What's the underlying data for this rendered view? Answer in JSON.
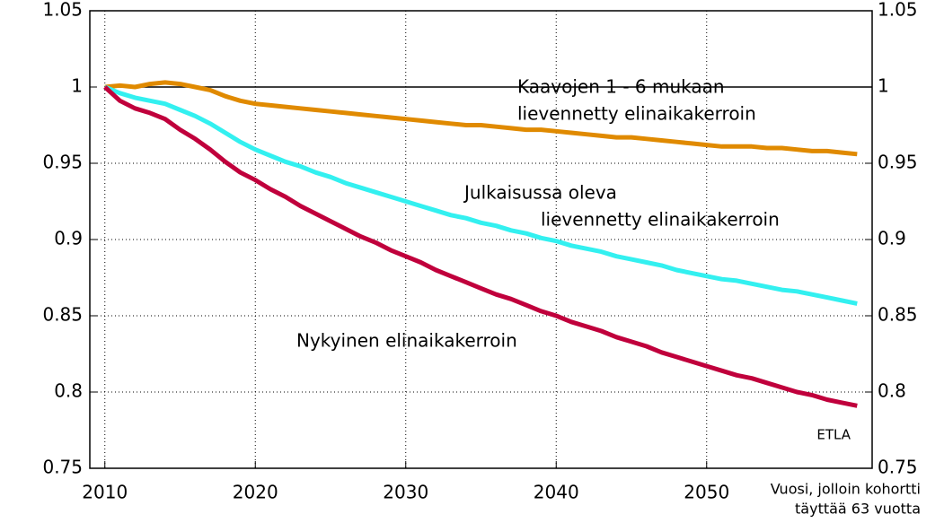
{
  "chart_data": {
    "type": "line",
    "x": [
      2010,
      2011,
      2012,
      2013,
      2014,
      2015,
      2016,
      2017,
      2018,
      2019,
      2020,
      2021,
      2022,
      2023,
      2024,
      2025,
      2026,
      2027,
      2028,
      2029,
      2030,
      2031,
      2032,
      2033,
      2034,
      2035,
      2036,
      2037,
      2038,
      2039,
      2040,
      2041,
      2042,
      2043,
      2044,
      2045,
      2046,
      2047,
      2048,
      2049,
      2050,
      2051,
      2052,
      2053,
      2054,
      2055,
      2056,
      2057,
      2058,
      2059,
      2060
    ],
    "series": [
      {
        "color": "#e08a00",
        "values": [
          1.0,
          1.001,
          1.0,
          1.002,
          1.003,
          1.002,
          1.0,
          0.998,
          0.994,
          0.991,
          0.989,
          0.988,
          0.987,
          0.986,
          0.985,
          0.984,
          0.983,
          0.982,
          0.981,
          0.98,
          0.979,
          0.978,
          0.977,
          0.976,
          0.975,
          0.975,
          0.974,
          0.973,
          0.972,
          0.972,
          0.971,
          0.97,
          0.969,
          0.968,
          0.967,
          0.967,
          0.966,
          0.965,
          0.964,
          0.963,
          0.962,
          0.961,
          0.961,
          0.961,
          0.96,
          0.96,
          0.959,
          0.958,
          0.958,
          0.957,
          0.956
        ]
      },
      {
        "color": "#33f0f0",
        "values": [
          1.0,
          0.996,
          0.993,
          0.991,
          0.989,
          0.985,
          0.981,
          0.976,
          0.97,
          0.964,
          0.959,
          0.955,
          0.951,
          0.948,
          0.944,
          0.941,
          0.937,
          0.934,
          0.931,
          0.928,
          0.925,
          0.922,
          0.919,
          0.916,
          0.914,
          0.911,
          0.909,
          0.906,
          0.904,
          0.901,
          0.899,
          0.896,
          0.894,
          0.892,
          0.889,
          0.887,
          0.885,
          0.883,
          0.88,
          0.878,
          0.876,
          0.874,
          0.873,
          0.871,
          0.869,
          0.867,
          0.866,
          0.864,
          0.862,
          0.86,
          0.858
        ]
      },
      {
        "color": "#c0003c",
        "values": [
          1.0,
          0.991,
          0.986,
          0.983,
          0.979,
          0.972,
          0.966,
          0.959,
          0.951,
          0.944,
          0.939,
          0.933,
          0.928,
          0.922,
          0.917,
          0.912,
          0.907,
          0.902,
          0.898,
          0.893,
          0.889,
          0.885,
          0.88,
          0.876,
          0.872,
          0.868,
          0.864,
          0.861,
          0.857,
          0.853,
          0.85,
          0.846,
          0.843,
          0.84,
          0.836,
          0.833,
          0.83,
          0.826,
          0.823,
          0.82,
          0.817,
          0.814,
          0.811,
          0.809,
          0.806,
          0.803,
          0.8,
          0.798,
          0.795,
          0.793,
          0.791
        ]
      }
    ],
    "xlim": [
      2009,
      2061
    ],
    "xticks": [
      2010,
      2020,
      2030,
      2040,
      2050
    ],
    "ylim": [
      0.75,
      1.05
    ],
    "yticks": [
      0.75,
      0.8,
      0.85,
      0.9,
      0.95,
      1,
      1.05
    ],
    "grid": true,
    "xlabel": [
      "Vuosi, jolloin kohortti",
      "täyttää 63 vuotta"
    ],
    "annotations": [
      "Kaavojen 1 - 6 mukaan",
      "lievennetty elinaikakerroin",
      "Julkaisussa oleva",
      "lievennetty elinaikakerroin",
      "Nykyinen elinaikakerroin",
      "ETLA"
    ]
  }
}
